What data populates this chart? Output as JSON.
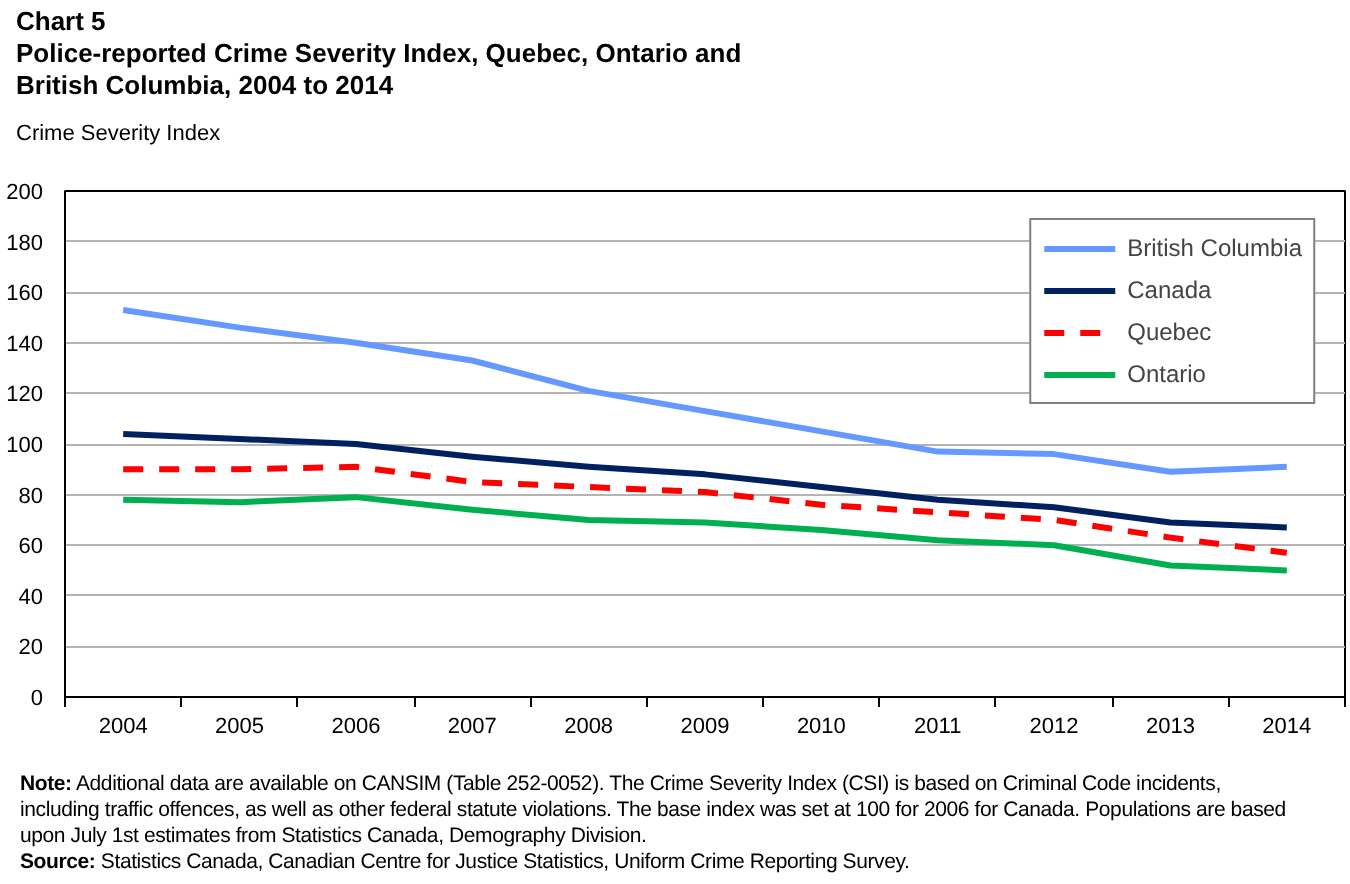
{
  "chart_data": {
    "type": "line",
    "title": "Chart 5",
    "subtitle": "Police-reported Crime Severity Index, Quebec, Ontario and British Columbia, 2004 to 2014",
    "ylabel": "Crime Severity Index",
    "categories": [
      "2004",
      "2005",
      "2006",
      "2007",
      "2008",
      "2009",
      "2010",
      "2011",
      "2012",
      "2013",
      "2014"
    ],
    "series": [
      {
        "name": "British Columbia",
        "color": "#6699ff",
        "values": [
          153,
          146,
          140,
          133,
          121,
          113,
          105,
          97,
          96,
          89,
          91
        ]
      },
      {
        "name": "Canada",
        "color": "#002060",
        "values": [
          104,
          102,
          100,
          95,
          91,
          88,
          83,
          78,
          75,
          69,
          67
        ]
      },
      {
        "name": "Quebec",
        "color": "#ff0000",
        "line_style": "dashed",
        "values": [
          90,
          90,
          91,
          85,
          83,
          81,
          76,
          73,
          70,
          63,
          57
        ]
      },
      {
        "name": "Ontario",
        "color": "#00b050",
        "values": [
          78,
          77,
          79,
          74,
          70,
          69,
          66,
          62,
          60,
          52,
          50
        ]
      }
    ],
    "ylim": [
      0,
      200
    ],
    "yticks": [
      0,
      20,
      40,
      60,
      80,
      100,
      120,
      140,
      160,
      180,
      200
    ],
    "grid": "y",
    "legend": "top right",
    "annotations": [
      "Note: Additional data are available on CANSIM (Table 252-0052). The Crime Severity Index (CSI) is based on Criminal Code incidents, including traffic offences, as well as other federal statute violations. The base index was set at 100 for 2006 for Canada. Populations are based upon July 1st estimates from Statistics Canada, Demography Division.",
      "Source: Statistics Canada, Canadian Centre for Justice Statistics, Uniform Crime Reporting Survey."
    ]
  }
}
